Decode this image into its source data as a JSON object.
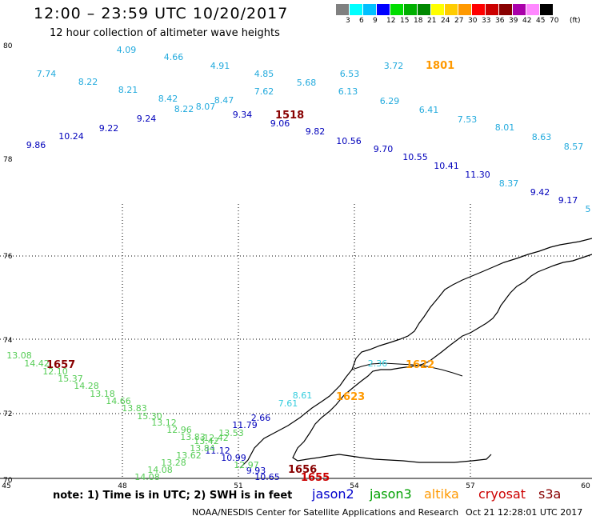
{
  "title": "12:00 – 23:59 UTC 10/20/2017",
  "subtitle": "12 hour collection of altimeter wave heights",
  "legend": {
    "unit": "(ft)",
    "colors": [
      "#808080",
      "#00ffff",
      "#00c0ff",
      "#0000ff",
      "#00dd00",
      "#00b000",
      "#008800",
      "#ffff00",
      "#ffcc00",
      "#ff9900",
      "#ff0000",
      "#cc0000",
      "#880000",
      "#aa00aa",
      "#ff88ff",
      "#000000"
    ],
    "labels": [
      "3",
      "6",
      "9",
      "12",
      "15",
      "18",
      "21",
      "24",
      "27",
      "30",
      "33",
      "36",
      "39",
      "42",
      "45",
      "70"
    ]
  },
  "axes": {
    "y_ticks": [
      "80",
      "78",
      "76",
      "74",
      "72",
      "70"
    ],
    "x_ticks": [
      "45",
      "48",
      "51",
      "54",
      "57",
      "60"
    ]
  },
  "satellite_colors": {
    "jason2": "#0000cc",
    "jason3": "#00a000",
    "altika": "#ff9900",
    "cryosat": "#cc0000",
    "s3a": "#880000"
  },
  "track_values": {
    "cyan": [
      "4.09",
      "4.66",
      "7.74",
      "4.91",
      "8.22",
      "4.85",
      "8.21",
      "5.68",
      "6.53",
      "3.72",
      "8.42",
      "7.62",
      "6.13",
      "8.22",
      "8.07",
      "8.47",
      "6.29",
      "6.41",
      "7.53",
      "8.01",
      "8.63",
      "8.57",
      "8.37",
      "5"
    ],
    "blue": [
      "9.24",
      "9.34",
      "9.22",
      "9.06",
      "10.24",
      "9.82",
      "9.86",
      "10.56",
      "9.70",
      "10.55",
      "10.41",
      "11.30",
      "9.42",
      "9.17",
      "2.66",
      "11.79",
      "11.12",
      "10.99",
      "9.93",
      "10.65"
    ],
    "green": [
      "13.08",
      "14.42",
      "12.10",
      "15.37",
      "14.28",
      "13.18",
      "14.66",
      "13.83",
      "15.30",
      "13.12",
      "12.96",
      "13.53",
      "13.83",
      "13.42",
      "12.42",
      "13.84",
      "13.62",
      "13.28",
      "14.08",
      "14.08",
      "12.97"
    ],
    "small_misc": [
      "2.36",
      "7.61",
      "8.61"
    ]
  },
  "time_labels": [
    {
      "text": "1801",
      "sat": "altika"
    },
    {
      "text": "1518",
      "sat": "s3a"
    },
    {
      "text": "1657",
      "sat": "s3a"
    },
    {
      "text": "1622",
      "sat": "altika"
    },
    {
      "text": "1623",
      "sat": "altika"
    },
    {
      "text": "1656",
      "sat": "s3a"
    },
    {
      "text": "1655",
      "sat": "cryosat"
    }
  ],
  "note": "note:  1) Time is in UTC;  2) SWH is in feet",
  "satellites": [
    "jason2",
    "jason3",
    "altika",
    "cryosat",
    "s3a"
  ],
  "footer_left": "NOAA/NESDIS Center for Satellite Applications and Research",
  "footer_right": "Oct 21 12:28:01 UTC 2017"
}
